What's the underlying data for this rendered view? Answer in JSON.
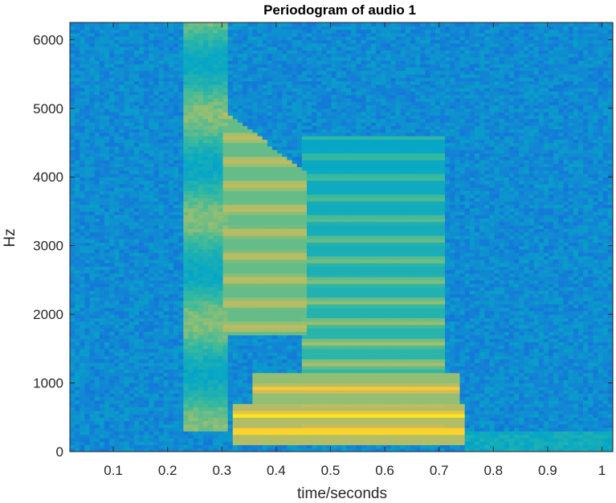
{
  "chart_data": {
    "type": "heatmap",
    "title": "Periodogram of audio 1",
    "xlabel": "time/seconds",
    "ylabel": "Hz",
    "xlim": [
      0.02,
      1.02
    ],
    "ylim": [
      0,
      6250
    ],
    "xticks": [
      0.1,
      0.2,
      0.3,
      0.4,
      0.5,
      0.6,
      0.7,
      0.8,
      0.9,
      1
    ],
    "xtick_labels": [
      "0.1",
      "0.2",
      "0.3",
      "0.4",
      "0.5",
      "0.6",
      "0.7",
      "0.8",
      "0.9",
      "1"
    ],
    "yticks": [
      0,
      1000,
      2000,
      3000,
      4000,
      5000,
      6000
    ],
    "ytick_labels": [
      "0",
      "1000",
      "2000",
      "3000",
      "4000",
      "5000",
      "6000"
    ],
    "grid": false,
    "colormap": "parula",
    "colors": {
      "low": "#3d7df0",
      "background": "#2b9ad8",
      "mid": "#22b7a8",
      "high": "#f5d23a",
      "peak": "#f9f55a"
    },
    "regions": [
      {
        "name": "onset burst",
        "t": [
          0.23,
          0.31
        ],
        "f": [
          300,
          6250
        ],
        "level": 0.72
      },
      {
        "name": "first vowel",
        "t": [
          0.3,
          0.45
        ],
        "f": [
          1800,
          5000
        ],
        "level": 0.75
      },
      {
        "name": "second vowel",
        "t": [
          0.45,
          0.7
        ],
        "f": [
          400,
          4600
        ],
        "level": 0.62
      },
      {
        "name": "low fundamental",
        "t": [
          0.32,
          0.75
        ],
        "f": [
          100,
          700
        ],
        "level": 0.95
      },
      {
        "name": "tail",
        "t": [
          0.75,
          1.02
        ],
        "f": [
          0,
          300
        ],
        "level": 0.5
      }
    ]
  }
}
